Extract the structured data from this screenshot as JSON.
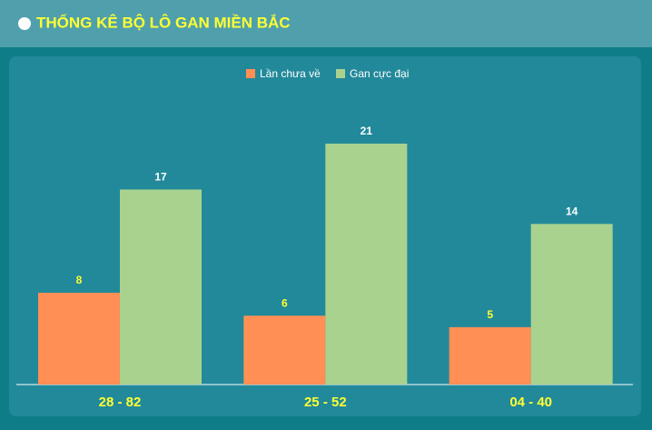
{
  "chart_data": {
    "type": "bar",
    "title": "THỐNG KÊ BỘ LÔ GAN MIỀN BẮC",
    "categories": [
      "28 - 82",
      "25 - 52",
      "04 - 40"
    ],
    "series": [
      {
        "name": "Lần chưa về",
        "color": "#ff8f54",
        "values": [
          8,
          6,
          5
        ]
      },
      {
        "name": "Gan cực đại",
        "color": "#aad28f",
        "values": [
          17,
          21,
          14
        ]
      }
    ],
    "legend": "top"
  }
}
